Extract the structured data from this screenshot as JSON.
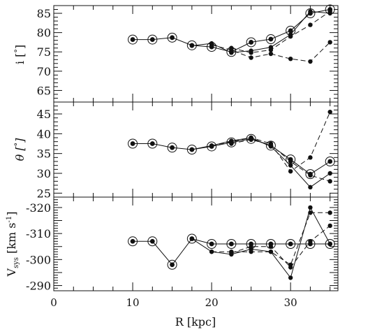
{
  "chart_data": [
    {
      "type": "line",
      "panel": "inclination",
      "ylabel": "i [°]",
      "xlim": [
        0,
        36
      ],
      "ylim": [
        62,
        87
      ],
      "yticks": [
        65,
        70,
        75,
        80,
        85
      ],
      "series": [
        {
          "style": "open-circle-solid",
          "x": [
            10,
            12.5,
            15,
            17.5,
            20,
            22.5,
            25,
            27.5,
            30,
            32.5,
            35
          ],
          "y": [
            78.2,
            78.2,
            78.7,
            76.7,
            76.3,
            75.0,
            77.5,
            78.3,
            80.5,
            85.0,
            86.0
          ]
        },
        {
          "style": "dot-solid",
          "x": [
            17.5,
            20,
            22.5,
            25,
            27.5,
            30,
            32.5,
            35
          ],
          "y": [
            76.6,
            77.2,
            74.8,
            75.3,
            76.2,
            79.5,
            85.5,
            85.0
          ]
        },
        {
          "style": "dot-dashed",
          "x": [
            20,
            22.5,
            25,
            27.5,
            30,
            32.5,
            35
          ],
          "y": [
            76.8,
            75.5,
            73.5,
            74.5,
            73.2,
            72.5,
            77.5
          ]
        },
        {
          "style": "dot-dashed",
          "x": [
            22.5,
            25,
            27.5,
            30,
            32.5,
            35
          ],
          "y": [
            76.0,
            74.8,
            75.5,
            79.0,
            82.0,
            85.5
          ]
        }
      ]
    },
    {
      "type": "line",
      "panel": "position-angle",
      "ylabel": "θ [°]",
      "xlim": [
        0,
        36
      ],
      "ylim": [
        24,
        48
      ],
      "yticks": [
        25,
        30,
        35,
        40,
        45
      ],
      "series": [
        {
          "style": "open-circle-solid",
          "x": [
            10,
            12.5,
            15,
            17.5,
            20,
            22.5,
            25,
            27.5,
            30,
            32.5,
            35
          ],
          "y": [
            37.5,
            37.5,
            36.5,
            36.0,
            36.8,
            37.8,
            38.7,
            37.0,
            33.5,
            29.8,
            33.0
          ]
        },
        {
          "style": "dot-solid",
          "x": [
            17.5,
            20,
            22.5,
            25,
            27.5,
            30,
            32.5,
            35
          ],
          "y": [
            36.0,
            37.0,
            38.2,
            39.0,
            36.8,
            32.0,
            26.5,
            30.0
          ]
        },
        {
          "style": "dot-dashed",
          "x": [
            20,
            22.5,
            25,
            27.5,
            30,
            32.5,
            35
          ],
          "y": [
            37.0,
            38.0,
            39.0,
            37.5,
            30.5,
            34.0,
            45.5
          ]
        },
        {
          "style": "dot-dashed",
          "x": [
            22.5,
            25,
            27.5,
            30,
            32.5,
            35
          ],
          "y": [
            37.5,
            38.5,
            37.2,
            33.0,
            29.5,
            28.0
          ]
        }
      ]
    },
    {
      "type": "line",
      "panel": "systemic-velocity",
      "ylabel": "V_sys [km s⁻¹]",
      "xlabel": "R [kpc]",
      "xlim": [
        0,
        36
      ],
      "ylim": [
        -288,
        -324
      ],
      "xticks": [
        0,
        10,
        20,
        30
      ],
      "yticks": [
        -290,
        -300,
        -310,
        -320
      ],
      "series": [
        {
          "style": "open-circle-solid",
          "x": [
            10,
            12.5,
            15,
            17.5,
            20,
            22.5,
            25,
            27.5,
            30,
            32.5,
            35
          ],
          "y": [
            -307,
            -307,
            -298,
            -308,
            -306,
            -306,
            -306,
            -306,
            -306,
            -306,
            -306
          ]
        },
        {
          "style": "dot-solid",
          "x": [
            17.5,
            20,
            22.5,
            25,
            27.5,
            30,
            32.5,
            35
          ],
          "y": [
            -308,
            -303,
            -302,
            -304,
            -303,
            -293,
            -320,
            -306
          ]
        },
        {
          "style": "dot-dashed",
          "x": [
            20,
            22.5,
            25,
            27.5,
            30,
            32.5,
            35
          ],
          "y": [
            -303,
            -303,
            -303,
            -303,
            -298,
            -318,
            -318
          ]
        },
        {
          "style": "dot-dashed",
          "x": [
            22.5,
            25,
            27.5,
            30,
            32.5,
            35
          ],
          "y": [
            -302.5,
            -305,
            -305,
            -297,
            -307,
            -313
          ]
        }
      ]
    }
  ],
  "labels": {
    "panel1_ylabel_main": "i [",
    "panel1_ylabel_deg": "°",
    "panel1_ylabel_close": "]",
    "panel2_ylabel_main": "θ [",
    "panel2_ylabel_deg": "°",
    "panel2_ylabel_close": "]",
    "panel3_ylabel_v": "V",
    "panel3_ylabel_sub": "sys",
    "panel3_ylabel_units": " [km s",
    "panel3_ylabel_sup": "-1",
    "panel3_ylabel_close": "]",
    "xlabel": "R [kpc]"
  }
}
